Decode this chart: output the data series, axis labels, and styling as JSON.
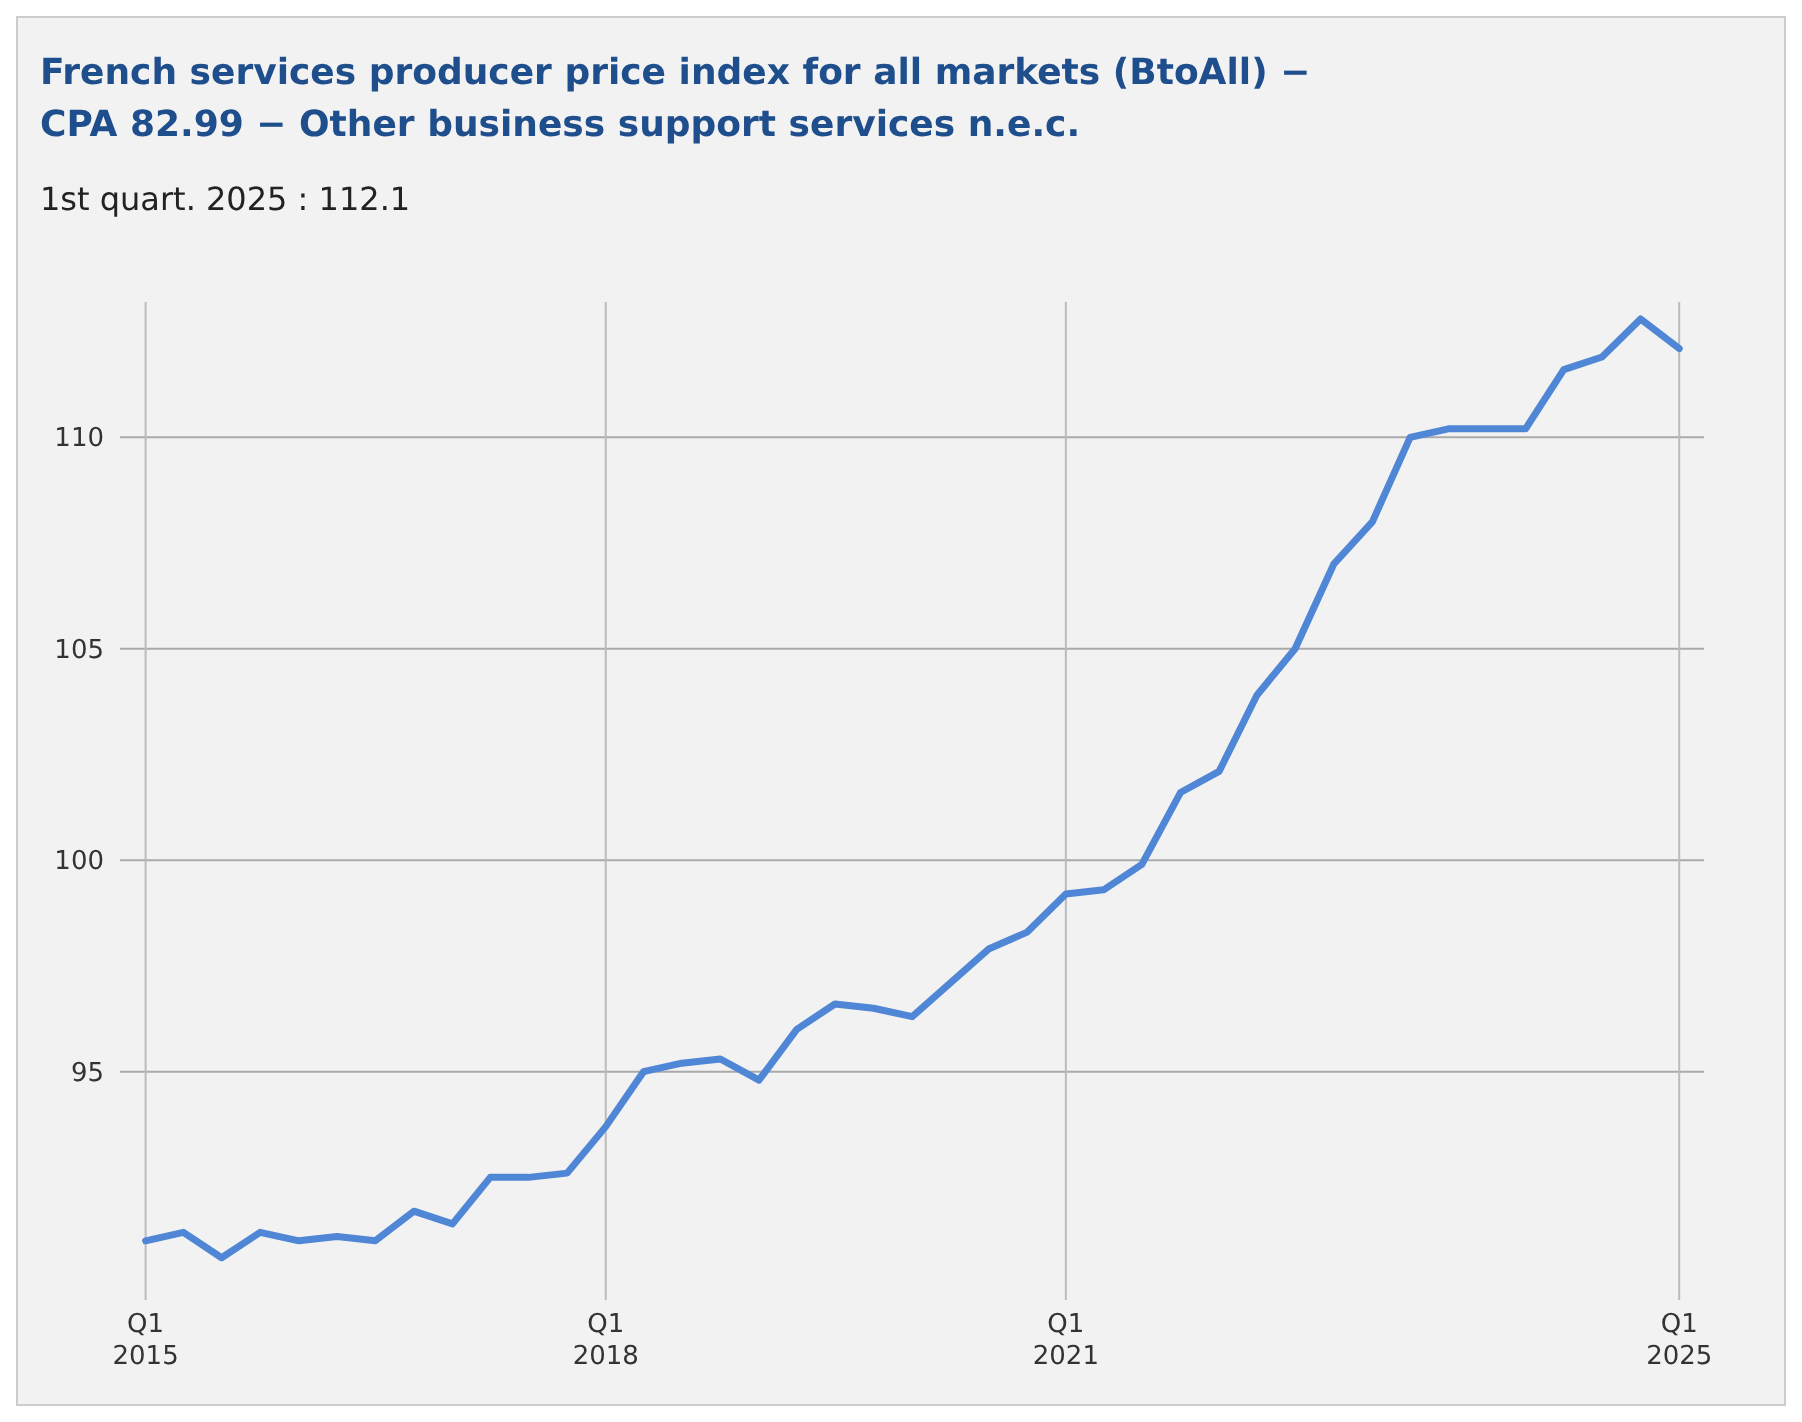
{
  "chart_data": {
    "type": "line",
    "title": "French services producer price index for all markets (BtoAll) −\nCPA 82.99 − Other business support services n.e.c.",
    "subtitle": "1st quart. 2025 : 112.1",
    "x": [
      "2015-01",
      "2015-04",
      "2015-07",
      "2015-10",
      "2016-01",
      "2016-04",
      "2016-07",
      "2016-10",
      "2017-01",
      "2017-04",
      "2017-07",
      "2017-10",
      "2018-01",
      "2018-04",
      "2018-07",
      "2018-10",
      "2019-01",
      "2019-04",
      "2019-07",
      "2019-10",
      "2020-01",
      "2020-04",
      "2020-07",
      "2020-10",
      "2021-01",
      "2021-04",
      "2021-07",
      "2021-10",
      "2022-01",
      "2022-04",
      "2022-07",
      "2022-10",
      "2023-01",
      "2023-04",
      "2023-07",
      "2023-10",
      "2024-01",
      "2024-04",
      "2024-07",
      "2024-10",
      "2025-01"
    ],
    "series": [
      {
        "color": "#4f86d6",
        "values": [
          91.0,
          91.2,
          90.6,
          91.2,
          91.0,
          91.1,
          91.0,
          91.7,
          91.4,
          92.5,
          92.5,
          92.6,
          93.7,
          95.0,
          95.2,
          95.3,
          94.8,
          96.0,
          96.6,
          96.5,
          96.3,
          97.1,
          97.9,
          98.3,
          99.2,
          99.3,
          99.9,
          101.6,
          102.1,
          103.9,
          105.0,
          107.0,
          108.0,
          110.0,
          110.2,
          110.2,
          110.2,
          111.6,
          111.9,
          112.8,
          112.1
        ]
      }
    ],
    "xlim": [
      "2014-11",
      "2025-03"
    ],
    "xticks": [
      {
        "value": "2015-01",
        "label": "Q1\n2015"
      },
      {
        "value": "2018-01",
        "label": "Q1\n2018"
      },
      {
        "value": "2021-01",
        "label": "Q1\n2021"
      },
      {
        "value": "2025-01",
        "label": "Q1\n2025"
      }
    ],
    "ylim": [
      89.6,
      113.2
    ],
    "yticks": [
      95,
      100,
      105,
      110
    ],
    "grid": true,
    "marker": "none",
    "line_style": "solid"
  }
}
